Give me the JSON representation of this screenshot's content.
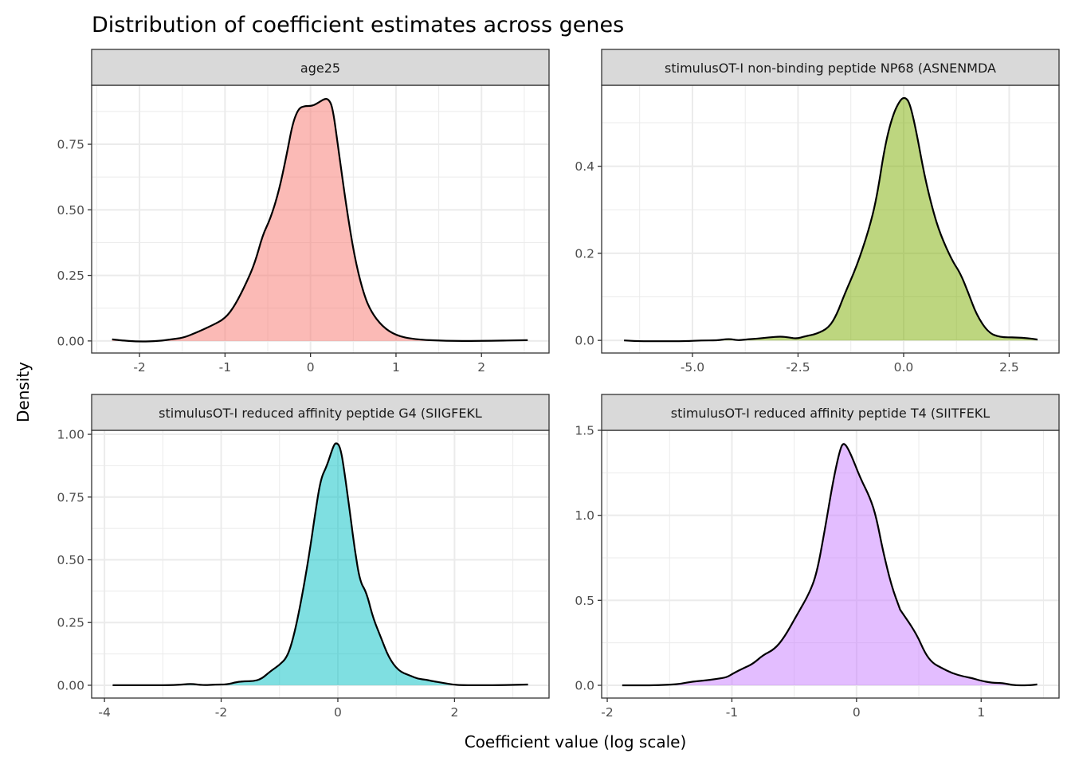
{
  "chart_data": {
    "type": "area",
    "subtype": "faceted density",
    "title": "Distribution of coefficient estimates across genes",
    "xlabel": "Coefficient value (log scale)",
    "ylabel": "Density",
    "grid": true,
    "legend": "none",
    "facets": [
      {
        "strip": "age25",
        "color": "#F8766D",
        "xlim": [
          -2.56,
          2.79
        ],
        "ylim": [
          -0.046,
          0.975
        ],
        "xticks": [
          -2,
          -1,
          0,
          1,
          2
        ],
        "xtick_labels": [
          "-2",
          "-1",
          "0",
          "1",
          "2"
        ],
        "yticks": [
          0,
          0.25,
          0.5,
          0.75
        ],
        "ytick_labels": [
          "0.00",
          "0.25",
          "0.50",
          "0.75"
        ],
        "x": [
          -2.32,
          -2.24,
          -2.01,
          -1.77,
          -1.63,
          -1.49,
          -1.35,
          -1.26,
          -1.16,
          -1.0,
          -0.88,
          -0.75,
          -0.65,
          -0.56,
          -0.47,
          -0.37,
          -0.28,
          -0.21,
          -0.14,
          -0.07,
          0.02,
          0.09,
          0.16,
          0.21,
          0.26,
          0.33,
          0.42,
          0.51,
          0.61,
          0.7,
          0.84,
          1.0,
          1.21,
          1.59,
          1.96,
          2.54
        ],
        "y": [
          0.006,
          0.003,
          -0.003,
          0.0,
          0.006,
          0.012,
          0.03,
          0.043,
          0.058,
          0.085,
          0.137,
          0.222,
          0.298,
          0.404,
          0.465,
          0.571,
          0.708,
          0.829,
          0.887,
          0.896,
          0.896,
          0.908,
          0.923,
          0.923,
          0.89,
          0.723,
          0.51,
          0.328,
          0.192,
          0.115,
          0.055,
          0.021,
          0.006,
          0.0,
          0.0,
          0.003
        ]
      },
      {
        "strip": "stimulusOT-I non-binding peptide NP68 (ASNENMDA",
        "color": "#7CAE00",
        "xlim": [
          -7.15,
          3.68
        ],
        "ylim": [
          -0.029,
          0.586
        ],
        "xticks": [
          -5,
          -2.5,
          0,
          2.5
        ],
        "xtick_labels": [
          "-5.0",
          "-2.5",
          "0.0",
          "2.5"
        ],
        "yticks": [
          0,
          0.2,
          0.4
        ],
        "ytick_labels": [
          "0.0",
          "0.2",
          "0.4"
        ],
        "x": [
          -6.62,
          -6.3,
          -5.74,
          -5.17,
          -4.79,
          -4.42,
          -4.13,
          -3.94,
          -3.75,
          -3.47,
          -3.19,
          -2.91,
          -2.72,
          -2.53,
          -2.34,
          -2.06,
          -1.77,
          -1.58,
          -1.4,
          -1.11,
          -0.83,
          -0.64,
          -0.45,
          -0.26,
          -0.08,
          0.04,
          0.15,
          0.3,
          0.49,
          0.68,
          0.87,
          1.15,
          1.34,
          1.53,
          1.72,
          2.0,
          2.28,
          2.66,
          2.94,
          3.17
        ],
        "y": [
          0.0,
          -0.002,
          -0.002,
          -0.002,
          0.0,
          0.0,
          0.004,
          0.0,
          0.002,
          0.004,
          0.007,
          0.009,
          0.007,
          0.004,
          0.009,
          0.015,
          0.029,
          0.06,
          0.106,
          0.17,
          0.252,
          0.325,
          0.444,
          0.517,
          0.553,
          0.559,
          0.544,
          0.48,
          0.38,
          0.303,
          0.243,
          0.183,
          0.155,
          0.11,
          0.06,
          0.018,
          0.007,
          0.007,
          0.005,
          0.002
        ]
      },
      {
        "strip": "stimulusOT-I reduced affinity peptide G4 (SIIGFEKL",
        "color": "#00BFC4",
        "xlim": [
          -4.22,
          3.62
        ],
        "ylim": [
          -0.051,
          1.016
        ],
        "xticks": [
          -4,
          -2,
          0,
          2
        ],
        "xtick_labels": [
          "-4",
          "-2",
          "0",
          "2"
        ],
        "yticks": [
          0,
          0.25,
          0.5,
          0.75,
          1.0
        ],
        "ytick_labels": [
          "0.00",
          "0.25",
          "0.50",
          "0.75",
          "1.00"
        ],
        "x": [
          -3.86,
          -3.4,
          -2.92,
          -2.65,
          -2.51,
          -2.31,
          -2.1,
          -1.9,
          -1.73,
          -1.6,
          -1.45,
          -1.31,
          -1.15,
          -1.01,
          -0.87,
          -0.76,
          -0.63,
          -0.5,
          -0.38,
          -0.29,
          -0.19,
          -0.08,
          -0.03,
          0.04,
          0.11,
          0.22,
          0.29,
          0.38,
          0.49,
          0.6,
          0.74,
          0.87,
          1.04,
          1.24,
          1.38,
          1.52,
          1.63,
          1.79,
          1.97,
          2.14,
          2.68,
          3.26
        ],
        "y": [
          0.0,
          0.0,
          0.0,
          0.003,
          0.006,
          0.0,
          0.003,
          0.003,
          0.013,
          0.016,
          0.016,
          0.025,
          0.057,
          0.079,
          0.111,
          0.19,
          0.333,
          0.508,
          0.698,
          0.825,
          0.873,
          0.952,
          0.968,
          0.952,
          0.857,
          0.667,
          0.54,
          0.413,
          0.371,
          0.27,
          0.19,
          0.111,
          0.057,
          0.038,
          0.025,
          0.022,
          0.016,
          0.01,
          0.003,
          0.0,
          0.0,
          0.003
        ]
      },
      {
        "strip": "stimulusOT-I reduced affinity peptide T4 (SIITFEKL",
        "color": "#C77CFF",
        "xlim": [
          -2.045,
          1.625
        ],
        "ylim": [
          -0.075,
          1.5
        ],
        "xticks": [
          -2,
          -1,
          0,
          1
        ],
        "xtick_labels": [
          "-2",
          "-1",
          "0",
          "1"
        ],
        "yticks": [
          0,
          0.5,
          1.0,
          1.5
        ],
        "ytick_labels": [
          "0.0",
          "0.5",
          "1.0",
          "1.5"
        ],
        "x": [
          -1.88,
          -1.76,
          -1.63,
          -1.47,
          -1.41,
          -1.31,
          -1.22,
          -1.12,
          -1.04,
          -0.99,
          -0.9,
          -0.83,
          -0.75,
          -0.66,
          -0.58,
          -0.48,
          -0.38,
          -0.32,
          -0.26,
          -0.19,
          -0.13,
          -0.1,
          -0.05,
          0.03,
          0.11,
          0.16,
          0.21,
          0.28,
          0.35,
          0.35,
          0.48,
          0.55,
          0.61,
          0.68,
          0.77,
          0.86,
          0.93,
          0.99,
          1.09,
          1.17,
          1.26,
          1.38,
          1.45
        ],
        "y": [
          0.0,
          0.0,
          0.0,
          0.005,
          0.009,
          0.023,
          0.028,
          0.038,
          0.047,
          0.07,
          0.103,
          0.127,
          0.178,
          0.211,
          0.281,
          0.412,
          0.539,
          0.656,
          0.891,
          1.195,
          1.397,
          1.43,
          1.369,
          1.219,
          1.102,
          0.984,
          0.797,
          0.586,
          0.445,
          0.445,
          0.305,
          0.188,
          0.131,
          0.103,
          0.07,
          0.052,
          0.042,
          0.028,
          0.014,
          0.014,
          0.0,
          0.0,
          0.005
        ]
      }
    ]
  }
}
